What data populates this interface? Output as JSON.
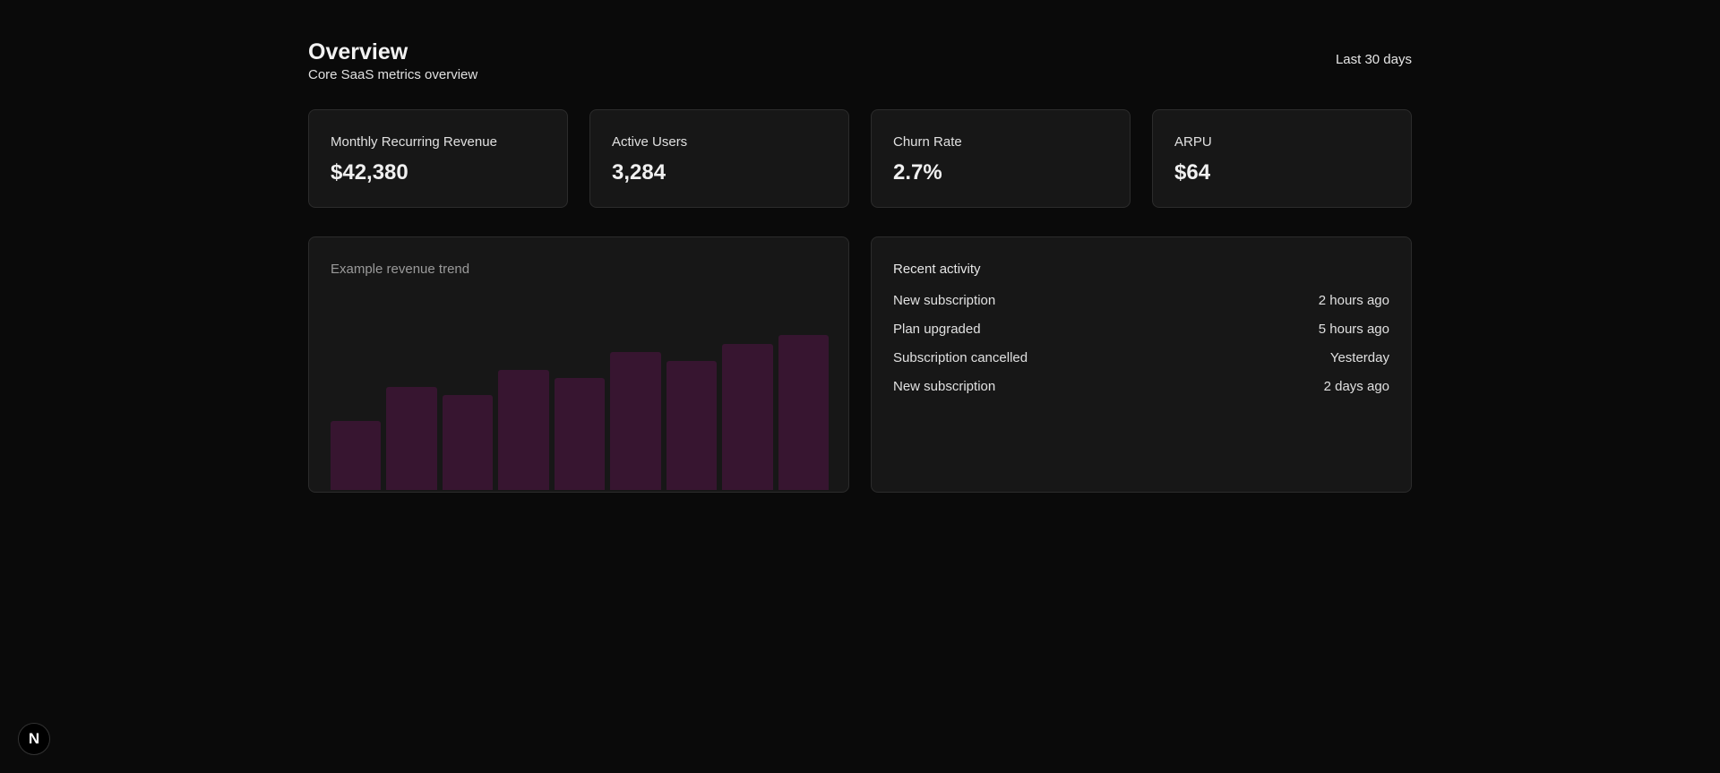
{
  "header": {
    "title": "Overview",
    "subtitle": "Core SaaS metrics overview",
    "range": "Last 30 days"
  },
  "stats": [
    {
      "label": "Monthly Recurring Revenue",
      "value": "$42,380"
    },
    {
      "label": "Active Users",
      "value": "3,284"
    },
    {
      "label": "Churn Rate",
      "value": "2.7%"
    },
    {
      "label": "ARPU",
      "value": "$64"
    }
  ],
  "chart_data": {
    "type": "bar",
    "title": "Example revenue trend",
    "values": [
      40,
      60,
      55,
      70,
      65,
      80,
      75,
      85,
      90
    ],
    "value_unit": "percent of chart height",
    "ylim": [
      0,
      100
    ],
    "grid": false,
    "bar_color": "#371530"
  },
  "activity": {
    "title": "Recent activity",
    "items": [
      {
        "event": "New subscription",
        "time": "2 hours ago"
      },
      {
        "event": "Plan upgraded",
        "time": "5 hours ago"
      },
      {
        "event": "Subscription cancelled",
        "time": "Yesterday"
      },
      {
        "event": "New subscription",
        "time": "2 days ago"
      }
    ]
  },
  "logo": {
    "letter": "N",
    "icon": "nextjs-logo"
  }
}
